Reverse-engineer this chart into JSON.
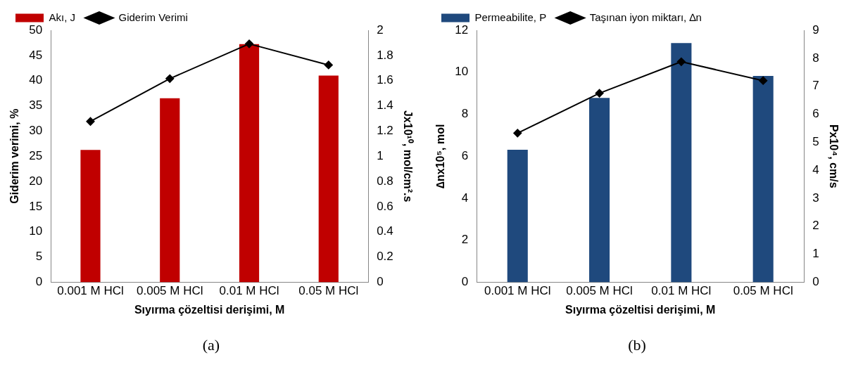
{
  "chart_data": [
    {
      "type": "bar",
      "categories": [
        "0.001 M HCl",
        "0.005 M HCl",
        "0.01 M HCl",
        "0.05 M HCl"
      ],
      "series": [
        {
          "name": "Akı, J",
          "axis": "y2",
          "color": "#c00000",
          "values": [
            1.05,
            1.46,
            1.89,
            1.64
          ]
        },
        {
          "name": "Giderim Verimi",
          "type": "line",
          "color": "#000000",
          "values": [
            31.9,
            40.4,
            47.3,
            43.1
          ]
        }
      ],
      "xlabel": "Sıyırma çözeltisi derişimi, M",
      "ylabel": "Giderim verimi, %",
      "y2label": "Jx10¹⁰, mol/cm².s",
      "ylim": [
        0,
        50
      ],
      "yticks": [
        0,
        5,
        10,
        15,
        20,
        25,
        30,
        35,
        40,
        45,
        50
      ],
      "y2lim": [
        0,
        2
      ],
      "y2ticks": [
        0,
        0.2,
        0.4,
        0.6,
        0.8,
        1,
        1.2,
        1.4,
        1.6,
        1.8,
        2
      ],
      "marker": "diamond",
      "legend": "top left",
      "annotations": [
        "(a)"
      ]
    },
    {
      "type": "bar",
      "categories": [
        "0.001 M HCl",
        "0.005 M HCl",
        "0.01 M HCl",
        "0.05 M HCl"
      ],
      "series": [
        {
          "name": "Permeabilite, P",
          "axis": "y2",
          "color": "#1f497d",
          "values": [
            4.73,
            6.58,
            8.54,
            7.37
          ]
        },
        {
          "name": "Taşınan iyon miktarı, ∆n",
          "type": "line",
          "color": "#000000",
          "values": [
            7.1,
            9.0,
            10.5,
            9.6
          ]
        }
      ],
      "xlabel": "Sıyırma çözeltisi derişimi, M",
      "ylabel": "∆nx10⁵, mol",
      "y2label": "Px10⁴, cm/s",
      "ylim": [
        0,
        12
      ],
      "yticks": [
        0,
        2,
        4,
        6,
        8,
        10,
        12
      ],
      "y2lim": [
        0,
        9
      ],
      "y2ticks": [
        0,
        1,
        2,
        3,
        4,
        5,
        6,
        7,
        8,
        9
      ],
      "marker": "diamond",
      "legend": "top left",
      "annotations": [
        "(b)"
      ]
    }
  ]
}
